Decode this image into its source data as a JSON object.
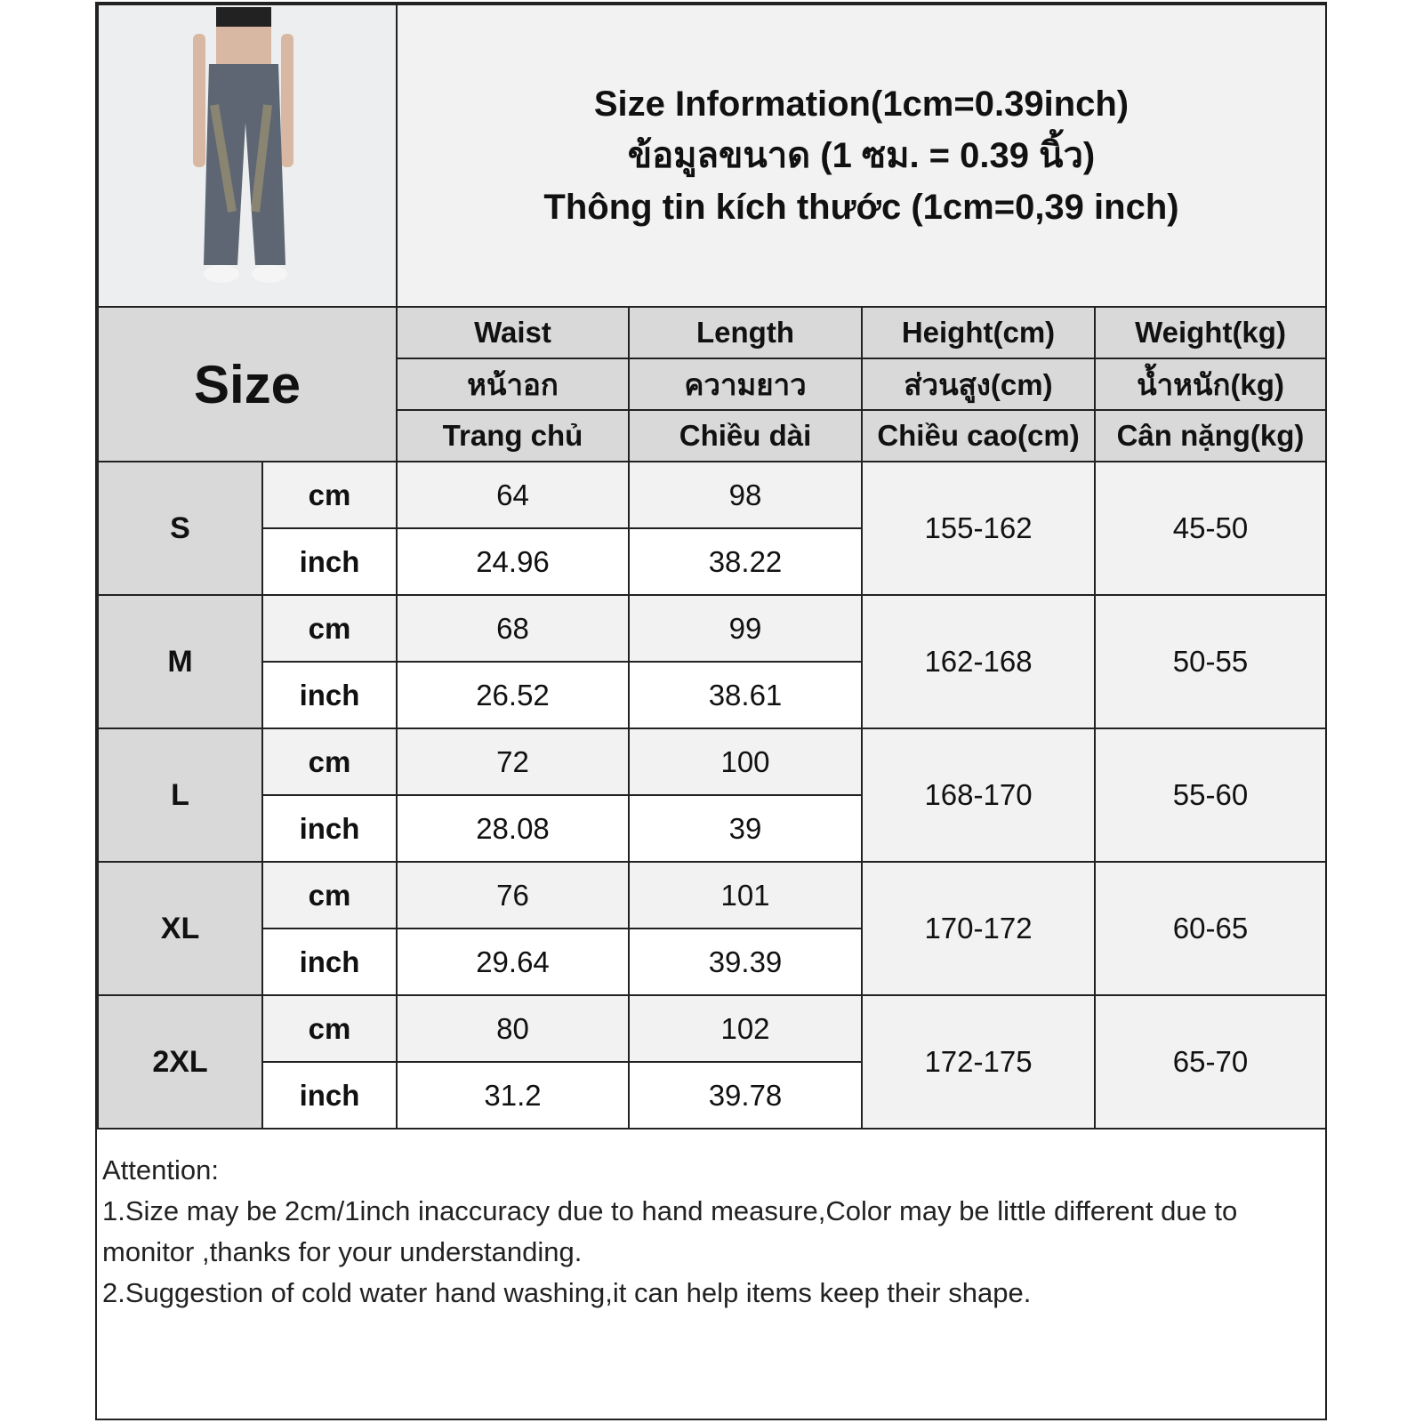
{
  "title_lines": [
    "Size Information(1cm=0.39inch)",
    "ข้อมูลขนาด (1 ซม. = 0.39 นิ้ว)",
    "Thông tin kích thước (1cm=0,39 inch)"
  ],
  "size_header": "Size",
  "columns": [
    {
      "en": "Waist",
      "th": "หน้าอก",
      "vi": "Trang chủ"
    },
    {
      "en": "Length",
      "th": "ความยาว",
      "vi": "Chiều dài"
    },
    {
      "en": "Height(cm)",
      "th": "ส่วนสูง(cm)",
      "vi": "Chiều cao(cm)"
    },
    {
      "en": "Weight(kg)",
      "th": "น้ำหนัก(kg)",
      "vi": "Cân nặng(kg)"
    }
  ],
  "unit_labels": {
    "cm": "cm",
    "inch": "inch"
  },
  "rows": [
    {
      "size": "S",
      "cm": {
        "waist": "64",
        "length": "98"
      },
      "inch": {
        "waist": "24.96",
        "length": "38.22"
      },
      "height": "155-162",
      "weight": "45-50"
    },
    {
      "size": "M",
      "cm": {
        "waist": "68",
        "length": "99"
      },
      "inch": {
        "waist": "26.52",
        "length": "38.61"
      },
      "height": "162-168",
      "weight": "50-55"
    },
    {
      "size": "L",
      "cm": {
        "waist": "72",
        "length": "100"
      },
      "inch": {
        "waist": "28.08",
        "length": "39"
      },
      "height": "168-170",
      "weight": "55-60"
    },
    {
      "size": "XL",
      "cm": {
        "waist": "76",
        "length": "101"
      },
      "inch": {
        "waist": "29.64",
        "length": "39.39"
      },
      "height": "170-172",
      "weight": "60-65"
    },
    {
      "size": "2XL",
      "cm": {
        "waist": "80",
        "length": "102"
      },
      "inch": {
        "waist": "31.2",
        "length": "39.78"
      },
      "height": "172-175",
      "weight": "65-70"
    }
  ],
  "notes": [
    "Attention:",
    "1.Size may be 2cm/1inch inaccuracy due to hand measure,Color may be little different due to monitor ,thanks for your understanding.",
    "2.Suggestion of cold water hand washing,it can help items keep their shape."
  ],
  "colors": {
    "header_gray": "#d9d9d9",
    "light_gray": "#f2f2f2",
    "border": "#222222",
    "denim": "#5d6672"
  },
  "photo": {
    "icon": "jeans-model-photo"
  }
}
